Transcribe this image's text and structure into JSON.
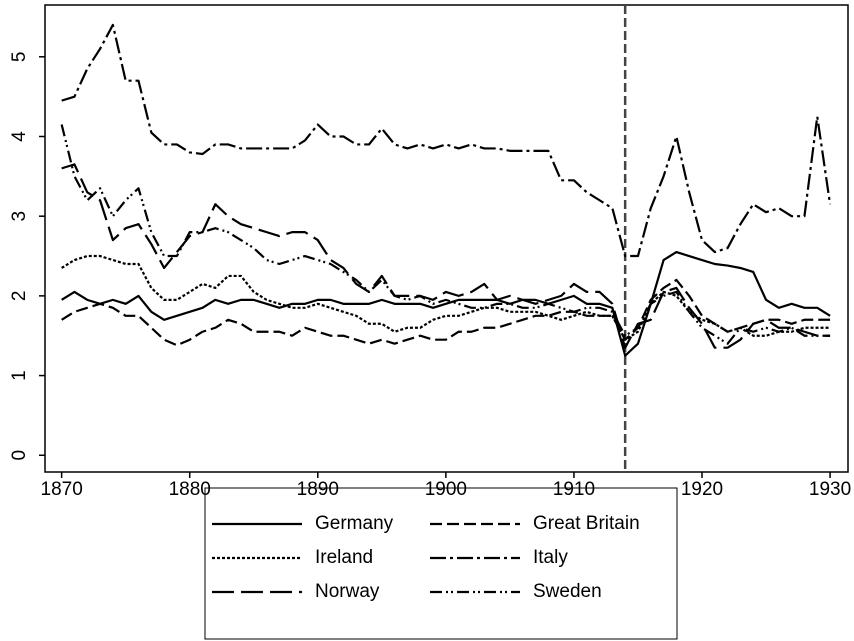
{
  "chart_data": {
    "type": "line",
    "x": [
      1870,
      1871,
      1872,
      1873,
      1874,
      1875,
      1876,
      1877,
      1878,
      1879,
      1880,
      1881,
      1882,
      1883,
      1884,
      1885,
      1886,
      1887,
      1888,
      1889,
      1890,
      1891,
      1892,
      1893,
      1894,
      1895,
      1896,
      1897,
      1898,
      1899,
      1900,
      1901,
      1902,
      1903,
      1904,
      1905,
      1906,
      1907,
      1908,
      1909,
      1910,
      1911,
      1912,
      1913,
      1914,
      1915,
      1916,
      1917,
      1918,
      1919,
      1920,
      1921,
      1922,
      1923,
      1924,
      1925,
      1926,
      1927,
      1928,
      1929,
      1930
    ],
    "xlim": [
      1868.7,
      1931.4
    ],
    "xticks": [
      1870,
      1880,
      1890,
      1900,
      1910,
      1920,
      1930
    ],
    "ylim": [
      -0.21,
      5.65
    ],
    "yticks": [
      0,
      1,
      2,
      3,
      4,
      5
    ],
    "vline": 1914,
    "series": [
      {
        "name": "Germany",
        "color": "#000000",
        "dash": "none",
        "values": [
          1.95,
          2.05,
          1.95,
          1.9,
          1.95,
          1.9,
          2.0,
          1.8,
          1.7,
          1.75,
          1.8,
          1.85,
          1.95,
          1.9,
          1.95,
          1.95,
          1.9,
          1.85,
          1.9,
          1.9,
          1.95,
          1.95,
          1.9,
          1.9,
          1.9,
          1.95,
          1.9,
          1.9,
          1.9,
          1.85,
          1.9,
          1.95,
          1.95,
          1.95,
          1.95,
          1.9,
          1.95,
          1.95,
          1.9,
          1.95,
          2.0,
          1.9,
          1.9,
          1.85,
          1.25,
          1.4,
          1.9,
          2.45,
          2.55,
          2.5,
          2.45,
          2.4,
          2.38,
          2.35,
          2.3,
          1.95,
          1.85,
          1.9,
          1.85,
          1.85,
          1.75
        ]
      },
      {
        "name": "Great Britain",
        "color": "#000000",
        "dash": "12 5",
        "values": [
          1.7,
          1.8,
          1.85,
          1.9,
          1.85,
          1.75,
          1.75,
          1.6,
          1.45,
          1.38,
          1.45,
          1.55,
          1.6,
          1.7,
          1.65,
          1.55,
          1.55,
          1.55,
          1.5,
          1.6,
          1.55,
          1.5,
          1.5,
          1.45,
          1.4,
          1.45,
          1.4,
          1.45,
          1.5,
          1.45,
          1.45,
          1.55,
          1.55,
          1.6,
          1.6,
          1.65,
          1.7,
          1.75,
          1.75,
          1.8,
          1.8,
          1.75,
          1.75,
          1.75,
          1.45,
          1.6,
          1.95,
          2.1,
          2.2,
          2.0,
          1.75,
          1.65,
          1.55,
          1.6,
          1.65,
          1.7,
          1.7,
          1.65,
          1.7,
          1.7,
          1.7
        ]
      },
      {
        "name": "Ireland",
        "color": "#000000",
        "dash": "3 2",
        "values": [
          2.35,
          2.45,
          2.5,
          2.5,
          2.45,
          2.4,
          2.4,
          2.1,
          1.95,
          1.95,
          2.05,
          2.15,
          2.1,
          2.25,
          2.25,
          2.05,
          1.95,
          1.9,
          1.85,
          1.85,
          1.9,
          1.85,
          1.8,
          1.75,
          1.65,
          1.65,
          1.55,
          1.6,
          1.6,
          1.7,
          1.75,
          1.75,
          1.8,
          1.85,
          1.85,
          1.8,
          1.8,
          1.8,
          1.75,
          1.7,
          1.75,
          1.8,
          1.75,
          1.75,
          1.45,
          1.55,
          1.9,
          2.05,
          2.0,
          1.8,
          1.7,
          1.65,
          1.55,
          1.6,
          1.5,
          1.5,
          1.55,
          1.55,
          1.6,
          1.6,
          1.6
        ]
      },
      {
        "name": "Italy",
        "color": "#000000",
        "dash": "16 4 3 4",
        "values": [
          4.45,
          4.5,
          4.85,
          5.1,
          5.4,
          4.7,
          4.7,
          4.05,
          3.9,
          3.9,
          3.8,
          3.78,
          3.9,
          3.9,
          3.85,
          3.85,
          3.85,
          3.85,
          3.85,
          3.95,
          4.15,
          4.0,
          4.0,
          3.9,
          3.9,
          4.1,
          3.9,
          3.85,
          3.9,
          3.85,
          3.9,
          3.85,
          3.9,
          3.85,
          3.85,
          3.82,
          3.82,
          3.82,
          3.82,
          3.45,
          3.45,
          3.3,
          3.2,
          3.1,
          2.5,
          2.5,
          3.1,
          3.5,
          4.0,
          3.3,
          2.7,
          2.55,
          2.6,
          2.9,
          3.15,
          3.05,
          3.1,
          3.0,
          3.0,
          4.25,
          3.15
        ]
      },
      {
        "name": "Norway",
        "color": "#000000",
        "dash": "22 7",
        "values": [
          3.6,
          3.65,
          3.3,
          3.2,
          2.7,
          2.85,
          2.9,
          2.65,
          2.35,
          2.55,
          2.75,
          2.8,
          3.15,
          3.0,
          2.9,
          2.85,
          2.8,
          2.75,
          2.8,
          2.8,
          2.7,
          2.45,
          2.35,
          2.15,
          2.05,
          2.25,
          2.0,
          2.0,
          2.0,
          1.95,
          2.05,
          2.0,
          2.05,
          2.15,
          1.95,
          2.0,
          1.95,
          1.9,
          1.95,
          2.0,
          2.15,
          2.05,
          2.05,
          1.9,
          1.35,
          1.65,
          1.7,
          2.05,
          2.1,
          1.85,
          1.65,
          1.35,
          1.35,
          1.45,
          1.65,
          1.7,
          1.6,
          1.6,
          1.55,
          1.5,
          1.5
        ]
      },
      {
        "name": "Sweden",
        "color": "#000000",
        "dash": "12 4 2 3 2 4",
        "values": [
          4.15,
          3.5,
          3.2,
          3.35,
          3.0,
          3.2,
          3.35,
          2.8,
          2.5,
          2.5,
          2.8,
          2.8,
          2.85,
          2.8,
          2.7,
          2.6,
          2.45,
          2.4,
          2.45,
          2.5,
          2.45,
          2.4,
          2.3,
          2.2,
          2.05,
          2.2,
          2.0,
          1.95,
          2.0,
          1.9,
          1.95,
          1.9,
          1.85,
          1.85,
          1.9,
          1.9,
          1.85,
          1.85,
          1.9,
          1.85,
          1.8,
          1.85,
          1.85,
          1.8,
          1.5,
          1.6,
          1.9,
          2.0,
          2.05,
          1.8,
          1.6,
          1.5,
          1.4,
          1.6,
          1.55,
          1.6,
          1.55,
          1.6,
          1.5,
          1.5,
          1.5
        ]
      }
    ]
  }
}
